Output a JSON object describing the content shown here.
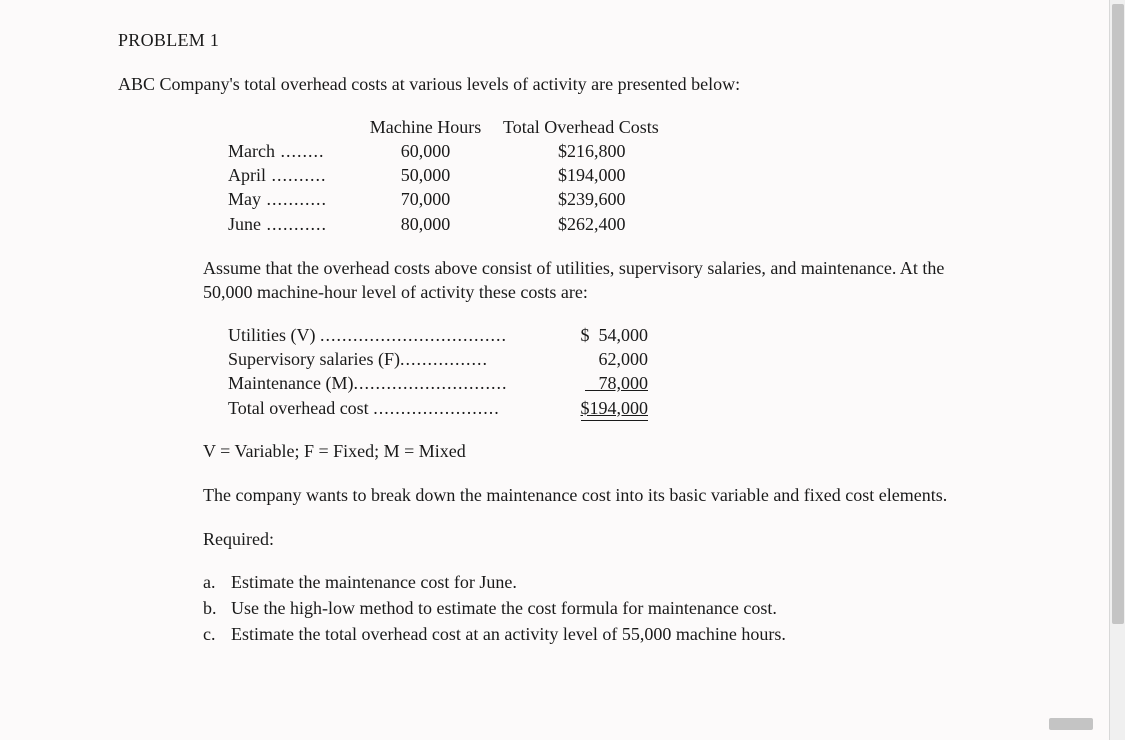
{
  "title": "PROBLEM 1",
  "intro": "ABC Company's total overhead costs at various levels of activity are presented below:",
  "activity": {
    "header_mh": "Machine Hours",
    "header_toc": "Total Overhead Costs",
    "rows": [
      {
        "month": "March",
        "mh": "60,000",
        "toc": "$216,800"
      },
      {
        "month": "April",
        "mh": "50,000",
        "toc": "$194,000"
      },
      {
        "month": "May",
        "mh": "70,000",
        "toc": "$239,600"
      },
      {
        "month": "June",
        "mh": "80,000",
        "toc": "$262,400"
      }
    ]
  },
  "assume": "Assume that the overhead costs above consist of utilities, supervisory salaries, and maintenance. At the 50,000 machine-hour level of activity these costs are:",
  "costs": {
    "rows": [
      {
        "label": "Utilities (V)",
        "dots": "..................................",
        "val": "$  54,000",
        "style": ""
      },
      {
        "label": "Supervisory salaries (F)",
        "dots": "................",
        "val": "62,000",
        "style": ""
      },
      {
        "label": "Maintenance (M)",
        "dots": "............................",
        "val": "78,000",
        "style": "single"
      },
      {
        "label": "Total overhead cost",
        "dots": ".......................",
        "val": "$194,000",
        "style": "double"
      }
    ]
  },
  "legend": "V = Variable; F = Fixed; M = Mixed",
  "breakdown": "The company wants to break down the maintenance cost into its basic variable and fixed cost elements.",
  "required": "Required:",
  "reqs": [
    {
      "l": "a.",
      "t": "Estimate the maintenance cost for June."
    },
    {
      "l": "b.",
      "t": "Use the high-low method to estimate the cost formula for maintenance cost."
    },
    {
      "l": "c.",
      "t": "Estimate the total overhead cost at an activity level of 55,000 machine hours."
    }
  ]
}
